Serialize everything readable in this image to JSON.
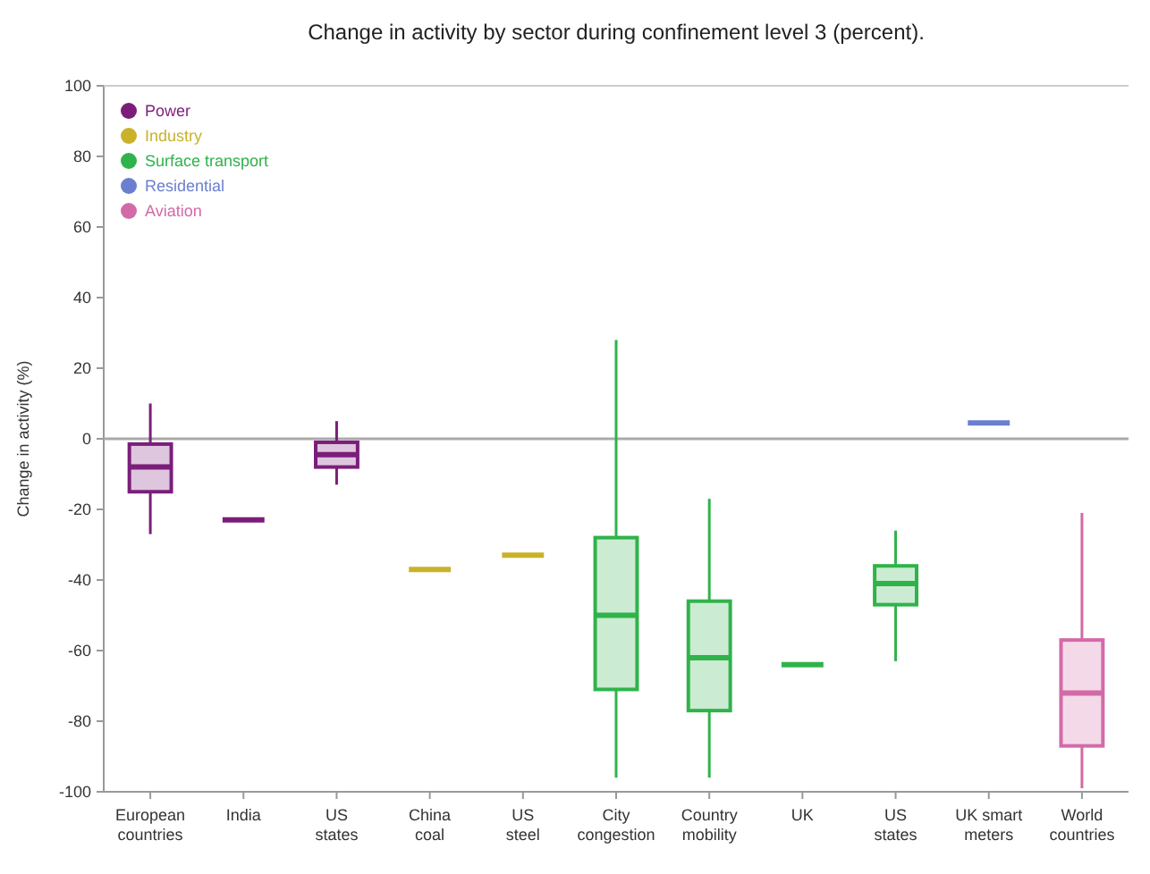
{
  "chart_data": {
    "type": "box",
    "title": "Change in activity by sector during confinement level 3 (percent).",
    "ylabel": "Change in activity (%)",
    "categories": [
      "European countries",
      "India",
      "US states",
      "China coal",
      "US steel",
      "City congestion",
      "Country mobility",
      "UK",
      "US states",
      "UK smart meters",
      "World countries"
    ],
    "ylim": [
      -100,
      100
    ],
    "yticks": [
      -100,
      -80,
      -60,
      -40,
      -20,
      0,
      20,
      40,
      60,
      80,
      100
    ],
    "grid": false,
    "legend": "top left",
    "ref_lines": [
      {
        "axis": "y",
        "value": 0,
        "color": "#aaaaaa"
      }
    ],
    "series": [
      {
        "name": "Power",
        "color": "#7b1e7a",
        "boxes": [
          {
            "low": -27,
            "q1": -15,
            "median": -8,
            "q3": -1.5,
            "high": 10
          },
          {
            "low": -23,
            "q1": -23,
            "median": -23,
            "q3": -23,
            "high": -23
          },
          {
            "low": -13,
            "q1": -8,
            "median": -4.5,
            "q3": -1,
            "high": 5
          },
          null,
          null,
          null,
          null,
          null,
          null,
          null,
          null
        ]
      },
      {
        "name": "Industry",
        "color": "#c9b22a",
        "boxes": [
          null,
          null,
          null,
          {
            "low": -37,
            "q1": -37,
            "median": -37,
            "q3": -37,
            "high": -37
          },
          {
            "low": -33,
            "q1": -33,
            "median": -33,
            "q3": -33,
            "high": -33
          },
          null,
          null,
          null,
          null,
          null,
          null
        ]
      },
      {
        "name": "Surface transport",
        "color": "#2fb34a",
        "boxes": [
          null,
          null,
          null,
          null,
          null,
          {
            "low": -96,
            "q1": -71,
            "median": -50,
            "q3": -28,
            "high": 28
          },
          {
            "low": -96,
            "q1": -77,
            "median": -62,
            "q3": -46,
            "high": -17
          },
          {
            "low": -64,
            "q1": -64,
            "median": -64,
            "q3": -64,
            "high": -64
          },
          {
            "low": -63,
            "q1": -47,
            "median": -41,
            "q3": -36,
            "high": -26
          },
          null,
          null
        ]
      },
      {
        "name": "Residential",
        "color": "#6a7fcf",
        "boxes": [
          null,
          null,
          null,
          null,
          null,
          null,
          null,
          null,
          null,
          {
            "low": 4.5,
            "q1": 4.5,
            "median": 4.5,
            "q3": 4.5,
            "high": 4.5
          },
          null
        ]
      },
      {
        "name": "Aviation",
        "color": "#d36aa8",
        "boxes": [
          null,
          null,
          null,
          null,
          null,
          null,
          null,
          null,
          null,
          null,
          {
            "low": -99,
            "q1": -87,
            "median": -72,
            "q3": -57,
            "high": -21
          }
        ]
      }
    ]
  }
}
